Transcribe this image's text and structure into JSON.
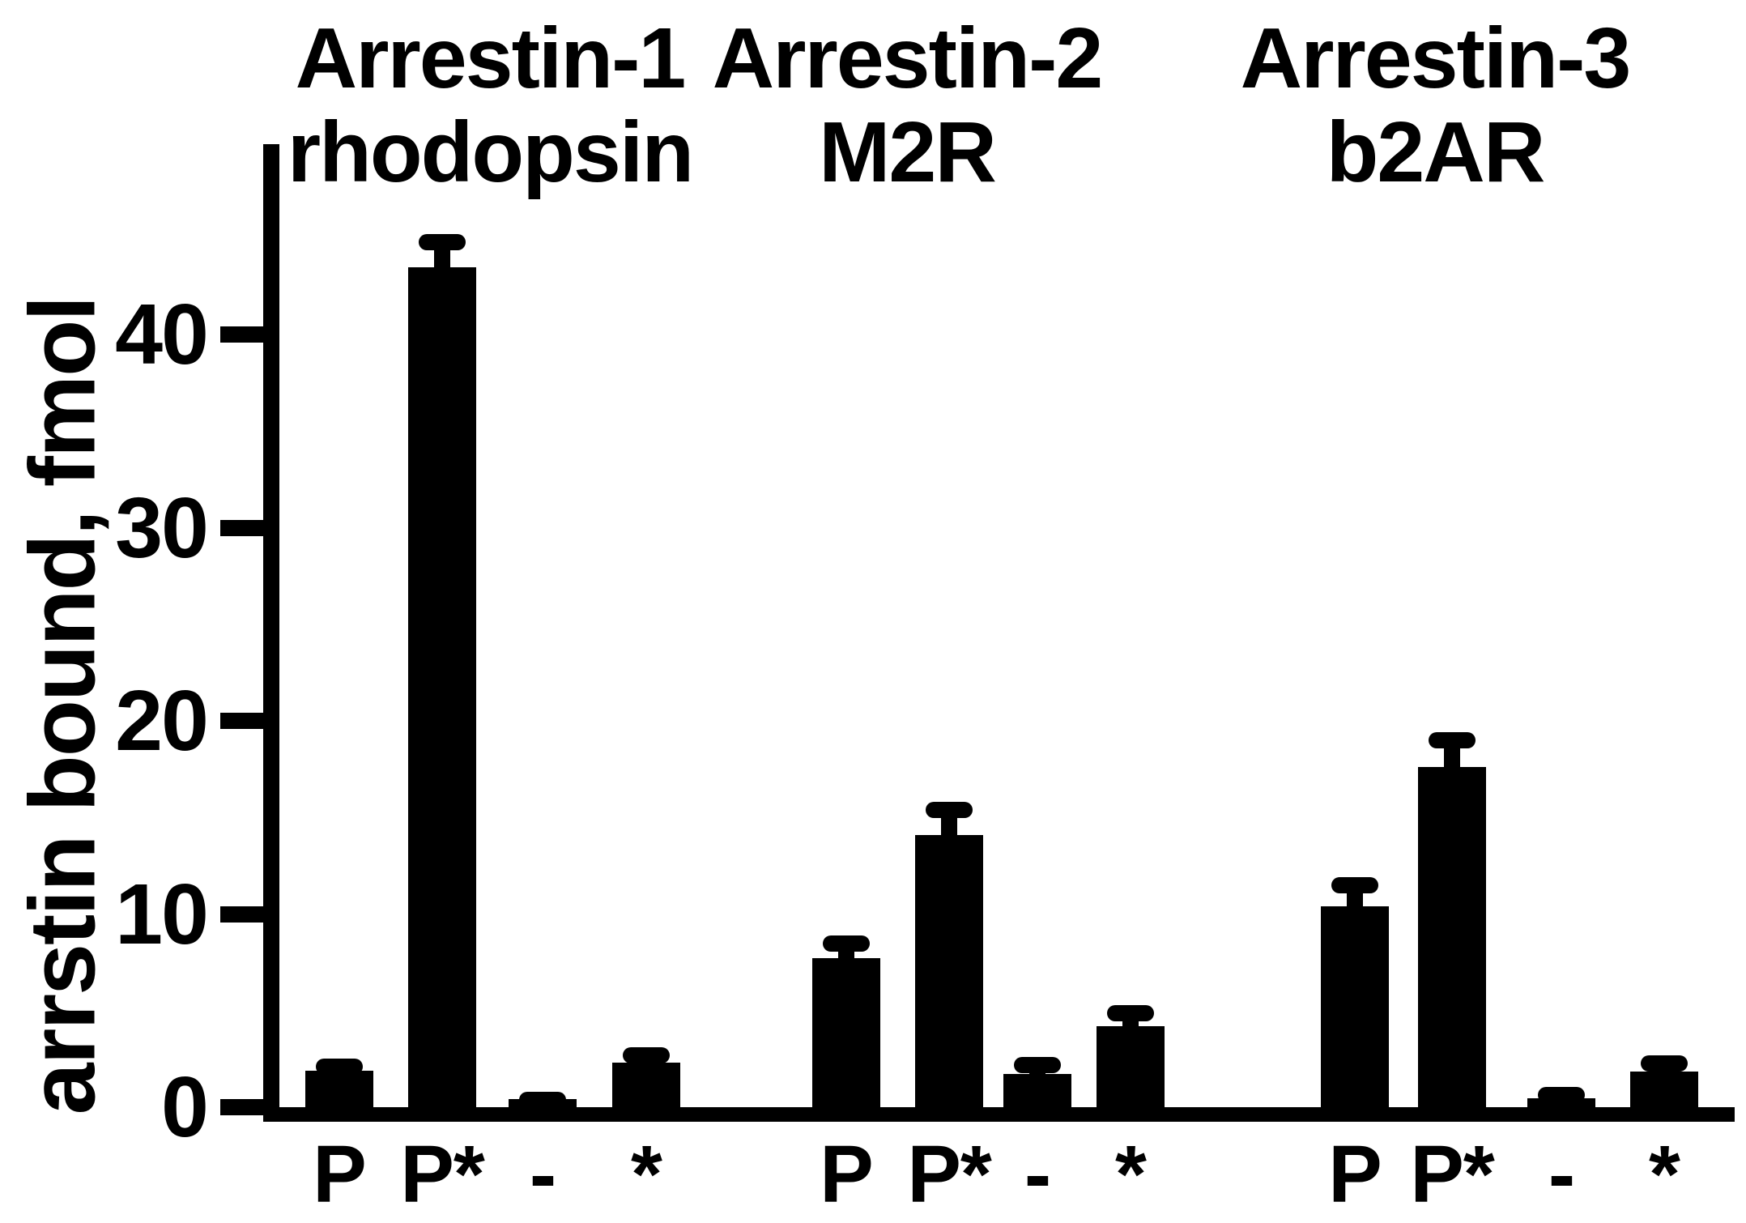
{
  "figure_title": "",
  "chart_data": {
    "type": "bar",
    "title": "",
    "xlabel": "",
    "ylabel": "arrstin bound, fmol",
    "ylim": [
      0,
      50
    ],
    "yticks": [
      0,
      10,
      20,
      30,
      40
    ],
    "grid": false,
    "legend": "none",
    "bar_color": "#000000",
    "error_bars": "upper, capped",
    "categories": [
      "P",
      "P*",
      "-",
      "*"
    ],
    "groups": [
      {
        "name": "Arrestin-1 rhodopsin",
        "title_line1": "Arrestin-1",
        "title_line2": "rhodopsin",
        "series": [
          {
            "label": "P",
            "value": 1.9,
            "error": 0.6
          },
          {
            "label": "P*",
            "value": 43.5,
            "error": 1.7
          },
          {
            "label": "-",
            "value": 0.4,
            "error": 0.4
          },
          {
            "label": "*",
            "value": 2.3,
            "error": 0.8
          }
        ]
      },
      {
        "name": "Arrestin-2 M2R",
        "title_line1": "Arrestin-2",
        "title_line2": "M2R",
        "series": [
          {
            "label": "P",
            "value": 7.7,
            "error": 1.2
          },
          {
            "label": "P*",
            "value": 14.1,
            "error": 1.7
          },
          {
            "label": "-",
            "value": 1.7,
            "error": 0.9
          },
          {
            "label": "*",
            "value": 4.2,
            "error": 1.1
          }
        ]
      },
      {
        "name": "Arrestin-3 b2AR",
        "title_line1": "Arrestin-3",
        "title_line2": "b2AR",
        "series": [
          {
            "label": "P",
            "value": 10.4,
            "error": 1.5
          },
          {
            "label": "P*",
            "value": 17.6,
            "error": 1.8
          },
          {
            "label": "-",
            "value": 0.45,
            "error": 0.6
          },
          {
            "label": "*",
            "value": 1.85,
            "error": 0.85
          }
        ]
      }
    ]
  }
}
